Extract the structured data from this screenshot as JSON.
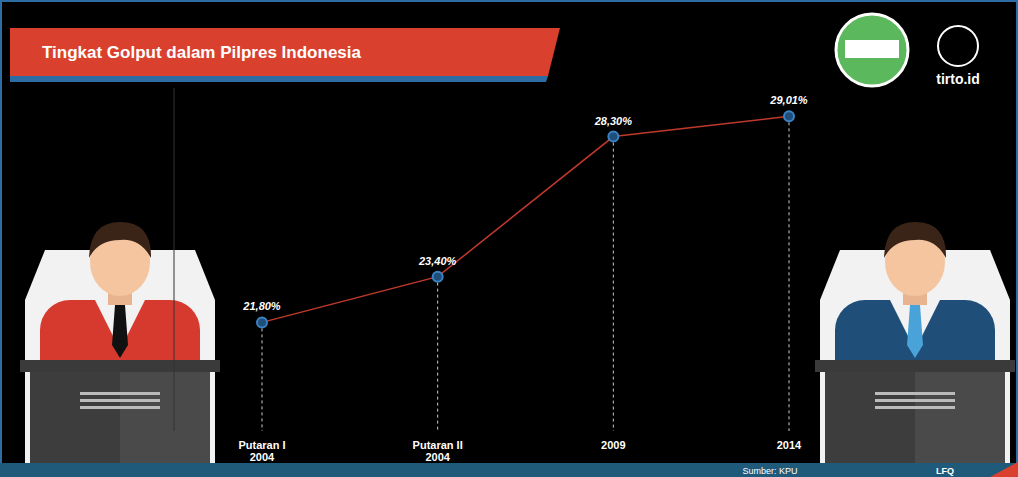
{
  "chart_data": {
    "type": "line",
    "title": "Tingkat Golput dalam Pilpres Indonesia",
    "categories": [
      "Putaran I 2004",
      "Putaran II 2004",
      "2009",
      "2014"
    ],
    "values": [
      21.8,
      23.4,
      28.3,
      29.01
    ],
    "value_labels": [
      "21,80%",
      "23,40%",
      "28,30%",
      "29,01%"
    ],
    "data_labels": true,
    "color": "#c0392b",
    "marker": "circle",
    "ylim": [
      18,
      30
    ],
    "tick_labels": "x",
    "grid": false,
    "source": "Sumber: KPU",
    "credit": "LFQ",
    "brand": "tirto.id"
  }
}
